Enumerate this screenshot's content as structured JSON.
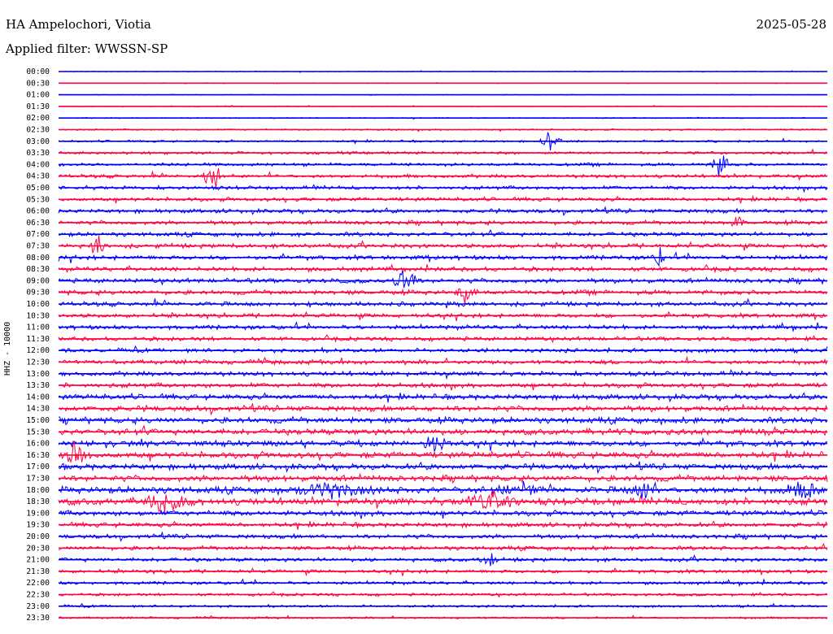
{
  "header": {
    "station": "HA Ampelochori, Viotia",
    "date": "2025-05-28",
    "filter": "Applied filter: WWSSN-SP"
  },
  "chart_data": {
    "type": "line",
    "title": "HA Ampelochori, Viotia",
    "subtitle": "Applied filter: WWSSN-SP",
    "ylabel": "HHZ - 10000",
    "colors": [
      "#0000ff",
      "#ff0040"
    ],
    "row_labels": [
      "00:00",
      "00:30",
      "01:00",
      "01:30",
      "02:00",
      "02:30",
      "03:00",
      "03:30",
      "04:00",
      "04:30",
      "05:00",
      "05:30",
      "06:00",
      "06:30",
      "07:00",
      "07:30",
      "08:00",
      "08:30",
      "09:00",
      "09:30",
      "10:00",
      "10:30",
      "11:00",
      "11:30",
      "12:00",
      "12:30",
      "13:00",
      "13:30",
      "14:00",
      "14:30",
      "15:00",
      "15:30",
      "16:00",
      "16:30",
      "17:00",
      "17:30",
      "18:00",
      "18:30",
      "19:00",
      "19:30",
      "20:00",
      "20:30",
      "21:00",
      "21:30",
      "22:00",
      "22:30",
      "23:00",
      "23:30"
    ],
    "row_noise": [
      0.4,
      0.4,
      0.4,
      0.5,
      0.6,
      0.9,
      1.2,
      1.6,
      1.8,
      2.0,
      2.1,
      2.2,
      2.3,
      2.3,
      2.4,
      2.5,
      2.5,
      2.5,
      2.6,
      2.6,
      2.5,
      2.4,
      2.4,
      2.3,
      2.3,
      2.5,
      2.6,
      2.7,
      3.0,
      3.2,
      3.4,
      3.4,
      3.3,
      3.6,
      3.3,
      3.4,
      3.8,
      4.0,
      3.0,
      2.6,
      2.4,
      2.3,
      2.2,
      2.0,
      1.8,
      1.6,
      1.4,
      1.2
    ],
    "events": [
      {
        "row": 6,
        "at": 0.64,
        "amp": 14,
        "width": 0.015
      },
      {
        "row": 8,
        "at": 0.86,
        "amp": 14,
        "width": 0.012
      },
      {
        "row": 9,
        "at": 0.2,
        "amp": 16,
        "width": 0.015
      },
      {
        "row": 13,
        "at": 0.88,
        "amp": 12,
        "width": 0.012
      },
      {
        "row": 15,
        "at": 0.05,
        "amp": 10,
        "width": 0.012
      },
      {
        "row": 16,
        "at": 0.78,
        "amp": 12,
        "width": 0.01
      },
      {
        "row": 18,
        "at": 0.45,
        "amp": 14,
        "width": 0.018
      },
      {
        "row": 19,
        "at": 0.53,
        "amp": 13,
        "width": 0.015
      },
      {
        "row": 32,
        "at": 0.49,
        "amp": 9,
        "width": 0.02
      },
      {
        "row": 33,
        "at": 0.02,
        "amp": 10,
        "width": 0.02
      },
      {
        "row": 36,
        "at": 0.36,
        "amp": 9,
        "width": 0.06
      },
      {
        "row": 36,
        "at": 0.6,
        "amp": 8,
        "width": 0.03
      },
      {
        "row": 36,
        "at": 0.76,
        "amp": 8,
        "width": 0.025
      },
      {
        "row": 36,
        "at": 0.97,
        "amp": 9,
        "width": 0.03
      },
      {
        "row": 37,
        "at": 0.14,
        "amp": 10,
        "width": 0.04
      },
      {
        "row": 37,
        "at": 0.56,
        "amp": 10,
        "width": 0.04
      },
      {
        "row": 42,
        "at": 0.56,
        "amp": 7,
        "width": 0.015
      }
    ]
  }
}
